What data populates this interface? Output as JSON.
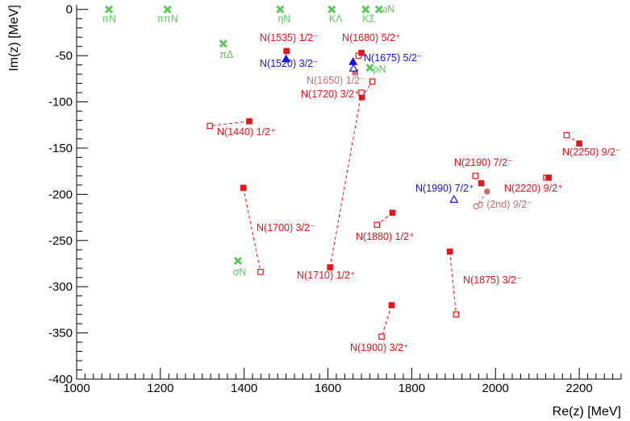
{
  "chart_data": {
    "type": "scatter",
    "xlabel": "Re(z) [MeV]",
    "ylabel": "Im(z) [MeV]",
    "xlim": [
      1000,
      2300
    ],
    "ylim": [
      -400,
      5
    ],
    "x_ticks": [
      1000,
      1200,
      1400,
      1600,
      1800,
      2000,
      2200
    ],
    "y_ticks": [
      0,
      -50,
      -100,
      -150,
      -200,
      -250,
      -300,
      -350,
      -400
    ],
    "grid": false,
    "colors": {
      "red": "#e8141c",
      "blue": "#1414e0",
      "green": "#5cc85c",
      "salmon": "#c87070"
    },
    "thresholds": [
      {
        "label": "πN",
        "x": 1077,
        "y": 0
      },
      {
        "label": "ππN",
        "x": 1217,
        "y": 0
      },
      {
        "label": "πΔ",
        "x": 1350,
        "y": -37
      },
      {
        "label": "ηN",
        "x": 1486,
        "y": 0
      },
      {
        "label": "KΛ",
        "x": 1609,
        "y": 0
      },
      {
        "label": "KΣ",
        "x": 1690,
        "y": 0
      },
      {
        "label": "ωN",
        "x": 1722,
        "y": 0
      },
      {
        "label": "ρN",
        "x": 1700,
        "y": -63
      },
      {
        "label": "σN",
        "x": 1385,
        "y": -272
      }
    ],
    "resonances": [
      {
        "label": "N(1440) 1/2⁺",
        "color": "red",
        "filled": [
          1412,
          -121
        ],
        "open": [
          1318,
          -126
        ]
      },
      {
        "label": "N(1535) 1/2⁻",
        "color": "red",
        "filled": [
          1501,
          -45
        ]
      },
      {
        "label": "N(1520) 3/2⁻",
        "color": "blue",
        "marker": "triangle",
        "filled": [
          1500,
          -54
        ]
      },
      {
        "label": "N(1650) 1/2⁻",
        "color": "salmon",
        "filled": [
          1665,
          -68
        ]
      },
      {
        "label": "N(1675) 5/2⁻",
        "color": "blue",
        "marker": "triangle",
        "filled": [
          1660,
          -57
        ],
        "open": [
          1661,
          -64
        ]
      },
      {
        "label": "N(1680) 5/2⁺",
        "color": "red",
        "filled": [
          1680,
          -47
        ],
        "open": [
          1673,
          -50
        ]
      },
      {
        "label": "N(1720) 3/2⁺",
        "color": "red",
        "filled": [
          1681,
          -95
        ],
        "open": [
          1706,
          -78
        ]
      },
      {
        "label": "N(1700) 3/2⁻",
        "color": "red",
        "filled": [
          1398,
          -193
        ],
        "open": [
          1439,
          -284
        ]
      },
      {
        "label": "N(1710) 1/2⁺",
        "color": "red",
        "filled": [
          1605,
          -279
        ],
        "open": [
          1680,
          -90
        ]
      },
      {
        "label": "N(1880) 1/2⁺",
        "color": "red",
        "filled": [
          1754,
          -220
        ],
        "open": [
          1717,
          -233
        ]
      },
      {
        "label": "N(1875) 3/2⁻",
        "color": "red",
        "filled": [
          1891,
          -262
        ],
        "open": [
          1906,
          -330
        ]
      },
      {
        "label": "N(1900) 3/2⁺",
        "color": "red",
        "filled": [
          1752,
          -320
        ],
        "open": [
          1728,
          -354
        ]
      },
      {
        "label": "N(1990) 7/2⁺",
        "color": "blue",
        "marker": "triangle",
        "open": [
          1901,
          -206
        ]
      },
      {
        "label": "N(2190) 7/2⁻",
        "color": "red",
        "filled": [
          1966,
          -188
        ],
        "open": [
          1952,
          -180
        ]
      },
      {
        "label": "σ (2nd) 9/2⁻",
        "color": "salmon",
        "marker": "circle",
        "filled": [
          1980,
          -197
        ],
        "open": [
          1954,
          -213
        ]
      },
      {
        "label": "N(2220) 9/2⁺",
        "color": "red",
        "filled": [
          2127,
          -182
        ],
        "open": [
          2121,
          -182
        ]
      },
      {
        "label": "N(2250) 9/2⁻",
        "color": "red",
        "filled": [
          2200,
          -145
        ],
        "open": [
          2170,
          -136
        ]
      }
    ]
  }
}
